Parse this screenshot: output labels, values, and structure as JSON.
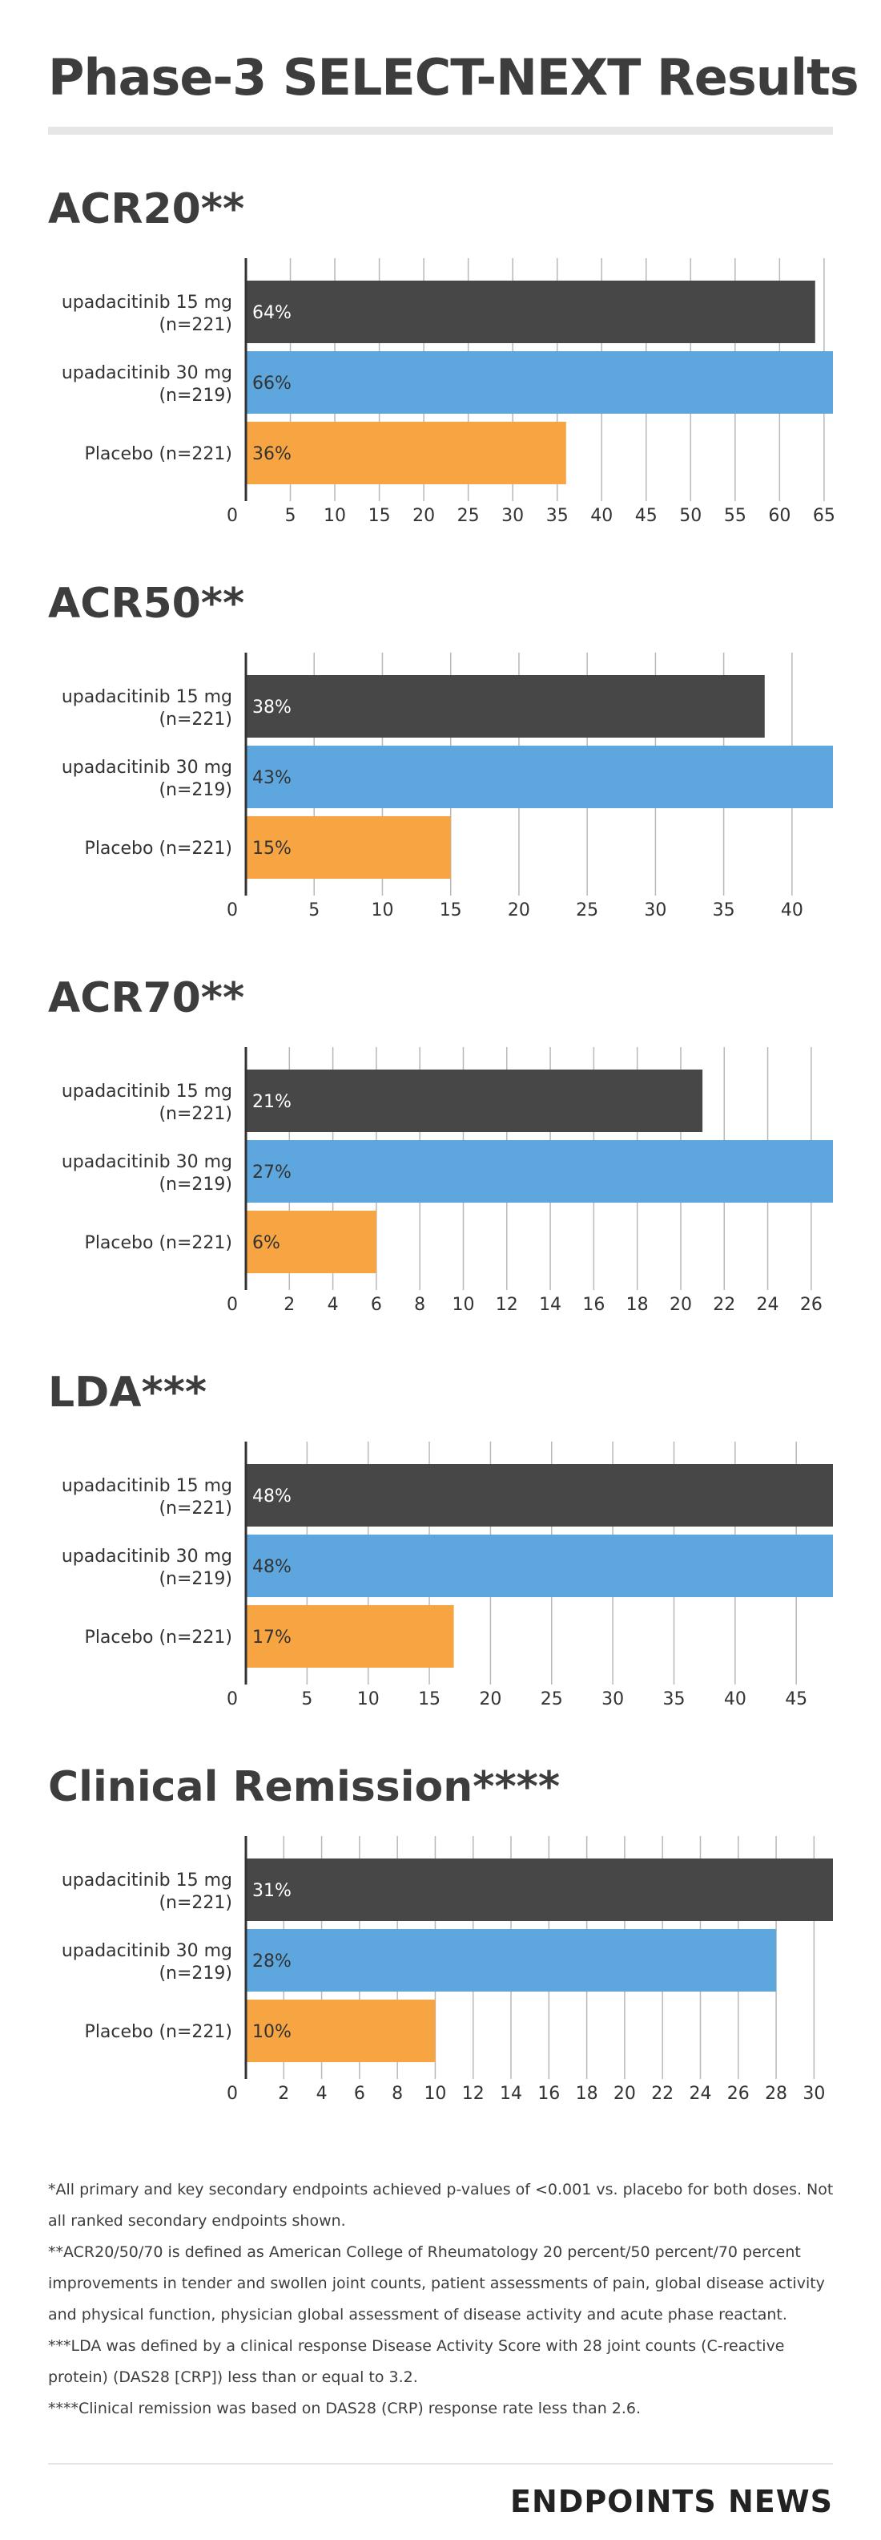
{
  "header": {
    "title": "Phase-3 SELECT-NEXT Results"
  },
  "colors": {
    "series1": "#474747",
    "series2": "#5ea7de",
    "series3": "#f7a443",
    "grid": "#b8b8b8",
    "axis": "#333333"
  },
  "chart_data": [
    {
      "type": "bar",
      "orientation": "horizontal",
      "title": "ACR20**",
      "categories": [
        "upadacitinib 15 mg|(n=221)",
        "upadacitinib 30 mg|(n=219)",
        "Placebo (n=221)"
      ],
      "values": [
        64,
        66,
        36
      ],
      "value_labels": [
        "64%",
        "66%",
        "36%"
      ],
      "xlim": [
        0,
        66
      ],
      "ticks": [
        0,
        5,
        10,
        15,
        20,
        25,
        30,
        35,
        40,
        45,
        50,
        55,
        60,
        65
      ],
      "grid": true
    },
    {
      "type": "bar",
      "orientation": "horizontal",
      "title": "ACR50**",
      "categories": [
        "upadacitinib 15 mg|(n=221)",
        "upadacitinib 30 mg|(n=219)",
        "Placebo (n=221)"
      ],
      "values": [
        38,
        43,
        15
      ],
      "value_labels": [
        "38%",
        "43%",
        "15%"
      ],
      "xlim": [
        0,
        43
      ],
      "ticks": [
        0,
        5,
        10,
        15,
        20,
        25,
        30,
        35,
        40
      ],
      "grid": true
    },
    {
      "type": "bar",
      "orientation": "horizontal",
      "title": "ACR70**",
      "categories": [
        "upadacitinib 15 mg|(n=221)",
        "upadacitinib 30 mg|(n=219)",
        "Placebo (n=221)"
      ],
      "values": [
        21,
        27,
        6
      ],
      "value_labels": [
        "21%",
        "27%",
        "6%"
      ],
      "xlim": [
        0,
        27
      ],
      "ticks": [
        0,
        2,
        4,
        6,
        8,
        10,
        12,
        14,
        16,
        18,
        20,
        22,
        24,
        26
      ],
      "grid": true
    },
    {
      "type": "bar",
      "orientation": "horizontal",
      "title": "LDA***",
      "categories": [
        "upadacitinib 15 mg|(n=221)",
        "upadacitinib 30 mg|(n=219)",
        "Placebo (n=221)"
      ],
      "values": [
        48,
        48,
        17
      ],
      "value_labels": [
        "48%",
        "48%",
        "17%"
      ],
      "xlim": [
        0,
        48
      ],
      "ticks": [
        0,
        5,
        10,
        15,
        20,
        25,
        30,
        35,
        40,
        45
      ],
      "grid": true
    },
    {
      "type": "bar",
      "orientation": "horizontal",
      "title": "Clinical Remission****",
      "categories": [
        "upadacitinib 15 mg|(n=221)",
        "upadacitinib 30 mg|(n=219)",
        "Placebo (n=221)"
      ],
      "values": [
        31,
        28,
        10
      ],
      "value_labels": [
        "31%",
        "28%",
        "10%"
      ],
      "xlim": [
        0,
        31
      ],
      "ticks": [
        0,
        2,
        4,
        6,
        8,
        10,
        12,
        14,
        16,
        18,
        20,
        22,
        24,
        26,
        28,
        30
      ],
      "grid": true
    }
  ],
  "footnotes": [
    "*All primary and key secondary endpoints achieved p-values of <0.001 vs. placebo for both doses. Not all ranked secondary endpoints shown.",
    "**ACR20/50/70 is defined as American College of Rheumatology 20 percent/50 percent/70 percent improvements in tender and swollen joint counts, patient assessments of pain, global disease activity and physical function, physician global assessment of disease activity and acute phase reactant.",
    "***LDA was defined by a clinical response Disease Activity Score with 28 joint counts (C-reactive protein) (DAS28 [CRP]) less than or equal to 3.2.",
    "****Clinical remission was based on DAS28 (CRP) response rate less than 2.6."
  ],
  "footer": {
    "brand": "ENDPOINTS NEWS"
  }
}
